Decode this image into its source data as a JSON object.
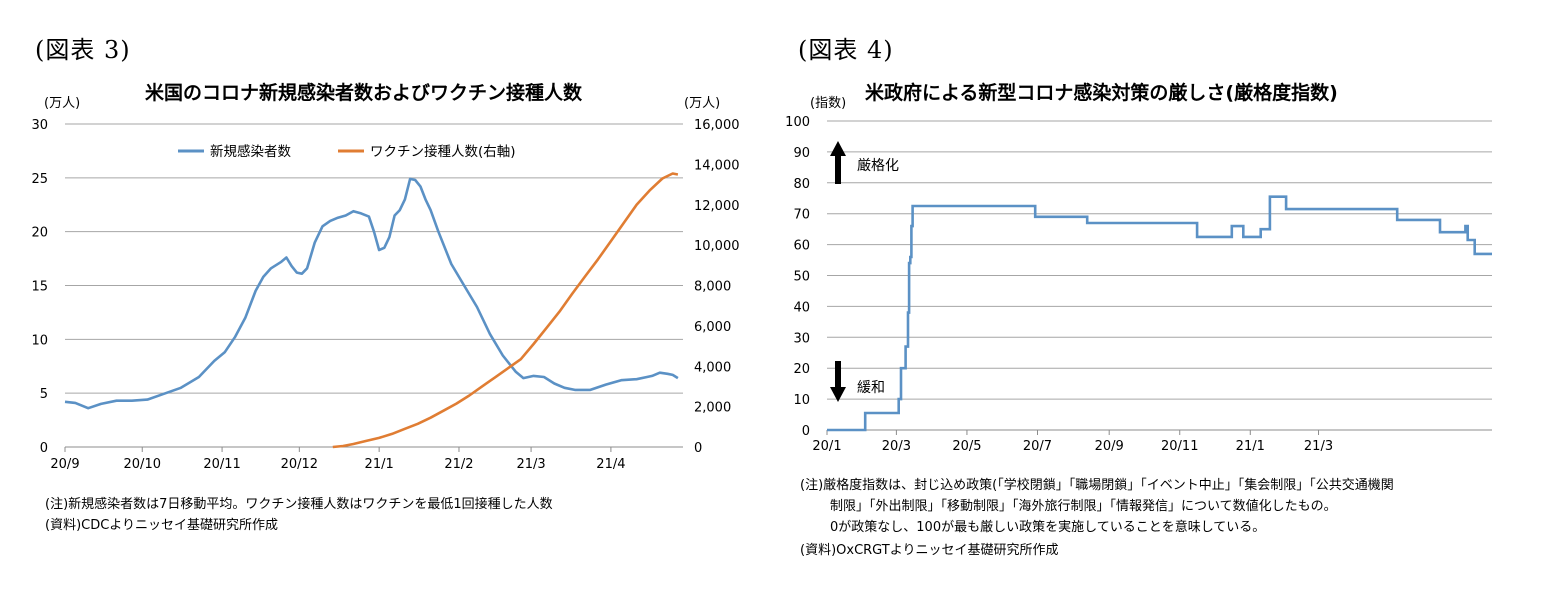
{
  "figures": [
    {
      "label": "(図表 3)",
      "unit_left": "(万人)",
      "unit_right": "(万人)",
      "notes": [
        "(注)新規感染者数は7日移動平均。ワクチン接種人数はワクチンを最低1回接種した人数",
        "(資料)CDCよりニッセイ基礎研究所作成"
      ]
    },
    {
      "label": "(図表 4)",
      "unit_left": "(指数)",
      "notes": [
        "(注)厳格度指数は、封じ込め政策(「学校閉鎖」「職場閉鎖」「イベント中止」「集会制限」「公共交通機関",
        "制限」「外出制限」「移動制限」「海外旅行制限」「情報発信」について数値化したもの。",
        "0が政策なし、100が最も厳しい政策を実施していることを意味している。",
        "(資料)OxCRGTよりニッセイ基礎研究所作成"
      ]
    }
  ],
  "chart_data": [
    {
      "type": "line",
      "title": "米国のコロナ新規感染者数およびワクチン接種人数",
      "xlabel": "",
      "ylabel": "(万人)",
      "y2label": "(万人)",
      "x_ticks": [
        "20/9",
        "20/10",
        "20/11",
        "20/12",
        "21/1",
        "21/2",
        "21/3",
        "21/4"
      ],
      "ylim": [
        0,
        30
      ],
      "y_ticks": [
        "0",
        "5",
        "10",
        "15",
        "20",
        "25",
        "30"
      ],
      "y2lim": [
        0,
        16000
      ],
      "y2_ticks": [
        "0",
        "2,000",
        "4,000",
        "6,000",
        "8,000",
        "10,000",
        "12,000",
        "14,000",
        "16,000"
      ],
      "grid": true,
      "legend": "top-center",
      "series": [
        {
          "name": "新規感染者数",
          "axis": "left",
          "color": "#5b91c5",
          "points": [
            [
              0,
              4.2
            ],
            [
              4,
              4.1
            ],
            [
              9,
              3.6
            ],
            [
              14,
              4.0
            ],
            [
              20,
              4.3
            ],
            [
              26,
              4.3
            ],
            [
              32,
              4.4
            ],
            [
              38,
              4.9
            ],
            [
              45,
              5.5
            ],
            [
              52,
              6.5
            ],
            [
              58,
              8.0
            ],
            [
              62,
              8.8
            ],
            [
              66,
              10.2
            ],
            [
              70,
              12.0
            ],
            [
              74,
              14.5
            ],
            [
              77,
              15.8
            ],
            [
              80,
              16.6
            ],
            [
              84,
              17.2
            ],
            [
              86,
              17.6
            ],
            [
              88,
              16.8
            ],
            [
              90,
              16.2
            ],
            [
              92,
              16.1
            ],
            [
              94,
              16.6
            ],
            [
              97,
              19.0
            ],
            [
              100,
              20.5
            ],
            [
              103,
              21.0
            ],
            [
              106,
              21.3
            ],
            [
              109,
              21.5
            ],
            [
              112,
              21.9
            ],
            [
              115,
              21.7
            ],
            [
              118,
              21.4
            ],
            [
              120,
              20.0
            ],
            [
              122,
              18.3
            ],
            [
              124,
              18.5
            ],
            [
              126,
              19.5
            ],
            [
              128,
              21.5
            ],
            [
              130,
              22.0
            ],
            [
              132,
              23.0
            ],
            [
              134,
              24.9
            ],
            [
              136,
              24.8
            ],
            [
              138,
              24.2
            ],
            [
              140,
              23.0
            ],
            [
              142,
              22.0
            ],
            [
              145,
              20.0
            ],
            [
              150,
              17.0
            ],
            [
              155,
              15.0
            ],
            [
              160,
              13.0
            ],
            [
              165,
              10.5
            ],
            [
              170,
              8.5
            ],
            [
              175,
              7.0
            ],
            [
              178,
              6.4
            ],
            [
              182,
              6.6
            ],
            [
              186,
              6.5
            ],
            [
              190,
              5.9
            ],
            [
              194,
              5.5
            ],
            [
              198,
              5.3
            ],
            [
              204,
              5.3
            ],
            [
              210,
              5.8
            ],
            [
              216,
              6.2
            ],
            [
              222,
              6.3
            ],
            [
              226,
              6.5
            ],
            [
              228,
              6.6
            ],
            [
              231,
              6.9
            ],
            [
              234,
              6.8
            ],
            [
              236,
              6.7
            ],
            [
              238,
              6.4
            ]
          ]
        },
        {
          "name": "ワクチン接種人数(右軸)",
          "axis": "right",
          "color": "#e07d33",
          "points": [
            [
              104,
              0
            ],
            [
              108,
              50
            ],
            [
              112,
              150
            ],
            [
              117,
              300
            ],
            [
              122,
              450
            ],
            [
              127,
              650
            ],
            [
              132,
              900
            ],
            [
              137,
              1150
            ],
            [
              142,
              1450
            ],
            [
              147,
              1800
            ],
            [
              152,
              2150
            ],
            [
              157,
              2550
            ],
            [
              162,
              3000
            ],
            [
              167,
              3450
            ],
            [
              172,
              3900
            ],
            [
              177,
              4350
            ],
            [
              182,
              5100
            ],
            [
              187,
              5900
            ],
            [
              192,
              6700
            ],
            [
              197,
              7600
            ],
            [
              202,
              8450
            ],
            [
              207,
              9300
            ],
            [
              212,
              10200
            ],
            [
              217,
              11100
            ],
            [
              222,
              12000
            ],
            [
              227,
              12700
            ],
            [
              232,
              13300
            ],
            [
              236,
              13550
            ],
            [
              238,
              13500
            ]
          ]
        }
      ]
    },
    {
      "type": "line",
      "title": "米政府による新型コロナ感染対策の厳しさ(厳格度指数)",
      "xlabel": "",
      "ylabel": "(指数)",
      "x_ticks": [
        "20/1",
        "20/3",
        "20/5",
        "20/7",
        "20/9",
        "20/11",
        "21/1",
        "21/3"
      ],
      "ylim": [
        0,
        100
      ],
      "y_ticks": [
        "0",
        "10",
        "20",
        "30",
        "40",
        "50",
        "60",
        "70",
        "80",
        "90",
        "100"
      ],
      "grid": true,
      "annotations": [
        {
          "text": "厳格化",
          "arrow": "up",
          "y": 85
        },
        {
          "text": "緩和",
          "arrow": "down",
          "y": 15
        }
      ],
      "series": [
        {
          "name": "厳格度指数",
          "color": "#5b91c5",
          "points": [
            [
              0,
              0
            ],
            [
              33,
              0
            ],
            [
              33,
              5.5
            ],
            [
              62,
              5.5
            ],
            [
              62,
              10
            ],
            [
              64,
              10
            ],
            [
              64,
              20
            ],
            [
              68,
              20
            ],
            [
              68,
              27
            ],
            [
              70,
              27
            ],
            [
              70,
              38
            ],
            [
              71,
              38
            ],
            [
              71,
              54
            ],
            [
              72,
              54
            ],
            [
              72,
              56
            ],
            [
              73,
              56
            ],
            [
              73,
              66
            ],
            [
              74,
              66
            ],
            [
              74,
              72.5
            ],
            [
              180,
              72.5
            ],
            [
              180,
              69
            ],
            [
              225,
              69
            ],
            [
              225,
              67
            ],
            [
              320,
              67
            ],
            [
              320,
              62.5
            ],
            [
              350,
              62.5
            ],
            [
              350,
              66
            ],
            [
              360,
              66
            ],
            [
              360,
              62.5
            ],
            [
              375,
              62.5
            ],
            [
              375,
              65
            ],
            [
              383,
              65
            ],
            [
              383,
              75.5
            ],
            [
              397,
              75.5
            ],
            [
              397,
              71.5
            ],
            [
              493,
              71.5
            ],
            [
              493,
              68
            ],
            [
              530,
              68
            ],
            [
              530,
              64
            ],
            [
              552,
              64
            ],
            [
              552,
              66
            ],
            [
              554,
              66
            ],
            [
              554,
              61.5
            ],
            [
              560,
              61.5
            ],
            [
              560,
              57
            ],
            [
              575,
              57
            ]
          ]
        }
      ]
    }
  ]
}
